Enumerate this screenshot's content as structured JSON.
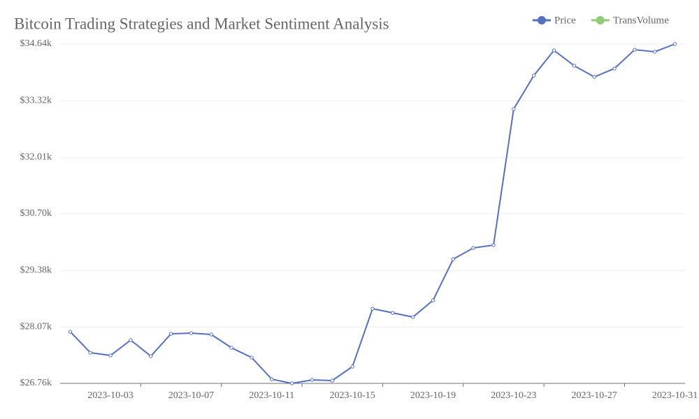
{
  "chart_data": {
    "type": "line",
    "title": "Bitcoin Trading Strategies and Market Sentiment Analysis",
    "categories": [
      null,
      null,
      "2023-10-03",
      null,
      null,
      null,
      "2023-10-07",
      null,
      null,
      null,
      "2023-10-11",
      null,
      null,
      null,
      "2023-10-15",
      null,
      null,
      null,
      "2023-10-19",
      null,
      null,
      null,
      "2023-10-23",
      null,
      null,
      null,
      "2023-10-27",
      null,
      null,
      null,
      "2023-10-31"
    ],
    "series": [
      {
        "name": "Price",
        "color": "#5470c6",
        "values": [
          27960,
          27473,
          27408,
          27765,
          27392,
          27911,
          27927,
          27895,
          27587,
          27360,
          26857,
          26760,
          26841,
          26825,
          27149,
          28494,
          28397,
          28300,
          28689,
          29645,
          29905,
          29970,
          33131,
          33909,
          34492,
          34136,
          33876,
          34071,
          34508,
          34460,
          34640
        ]
      },
      {
        "name": "TransVolume",
        "color": "#91cc75",
        "values": [
          null,
          null,
          null,
          null,
          null,
          null,
          null,
          null,
          null,
          null,
          null,
          null,
          null,
          null,
          null,
          null,
          null,
          null,
          null,
          null,
          null,
          null,
          null,
          null,
          null,
          null,
          null,
          null,
          null,
          null,
          null
        ]
      }
    ],
    "ylim": [
      26760,
      34640
    ],
    "yticks": [
      {
        "value": 26760,
        "label": "$26.76k"
      },
      {
        "value": 28070,
        "label": "$28.07k"
      },
      {
        "value": 29380,
        "label": "$29.38k"
      },
      {
        "value": 30700,
        "label": "$30.70k"
      },
      {
        "value": 32010,
        "label": "$32.01k"
      },
      {
        "value": 33320,
        "label": "$33.32k"
      },
      {
        "value": 34640,
        "label": "$34.64k"
      }
    ],
    "grid": true,
    "legend": "top-right"
  }
}
